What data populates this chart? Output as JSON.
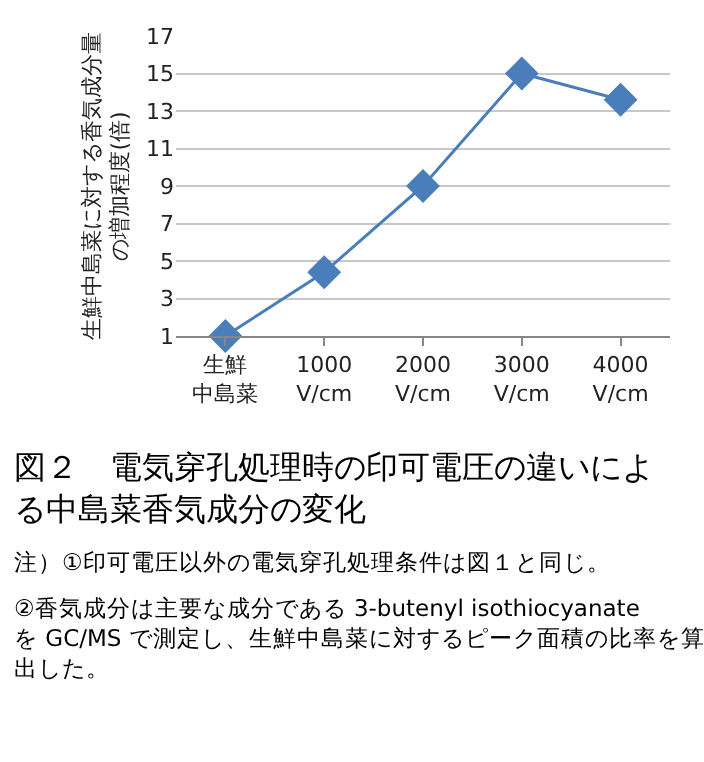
{
  "chart_data": {
    "type": "line",
    "title": "図２　電気穿孔処理時の印可電圧の違いによる中島菜香気成分の変化",
    "ylabel": "生鮮中島菜に対する香気成分量の増加程度(倍)",
    "categories": [
      "生鮮中島菜",
      "1000 V/cm",
      "2000 V/cm",
      "3000 V/cm",
      "4000 V/cm"
    ],
    "series": [
      {
        "color": "#4a7ebb",
        "values": [
          1,
          4.4,
          9,
          15,
          13.6
        ]
      }
    ],
    "ylim": [
      1,
      17
    ],
    "yticks": [
      1,
      3,
      5,
      7,
      9,
      11,
      13,
      15,
      17
    ],
    "grid": "y",
    "marker": "diamond",
    "line_style": "solid",
    "annotations": [
      "注）①印可電圧以外の電気穿孔処理条件は図１と同じ。",
      "②香気成分は主要な成分である 3-butenyl isothiocyanate を GC/MS で測定し、生鮮中島菜に対するピーク面積の比率を算出した。"
    ]
  }
}
